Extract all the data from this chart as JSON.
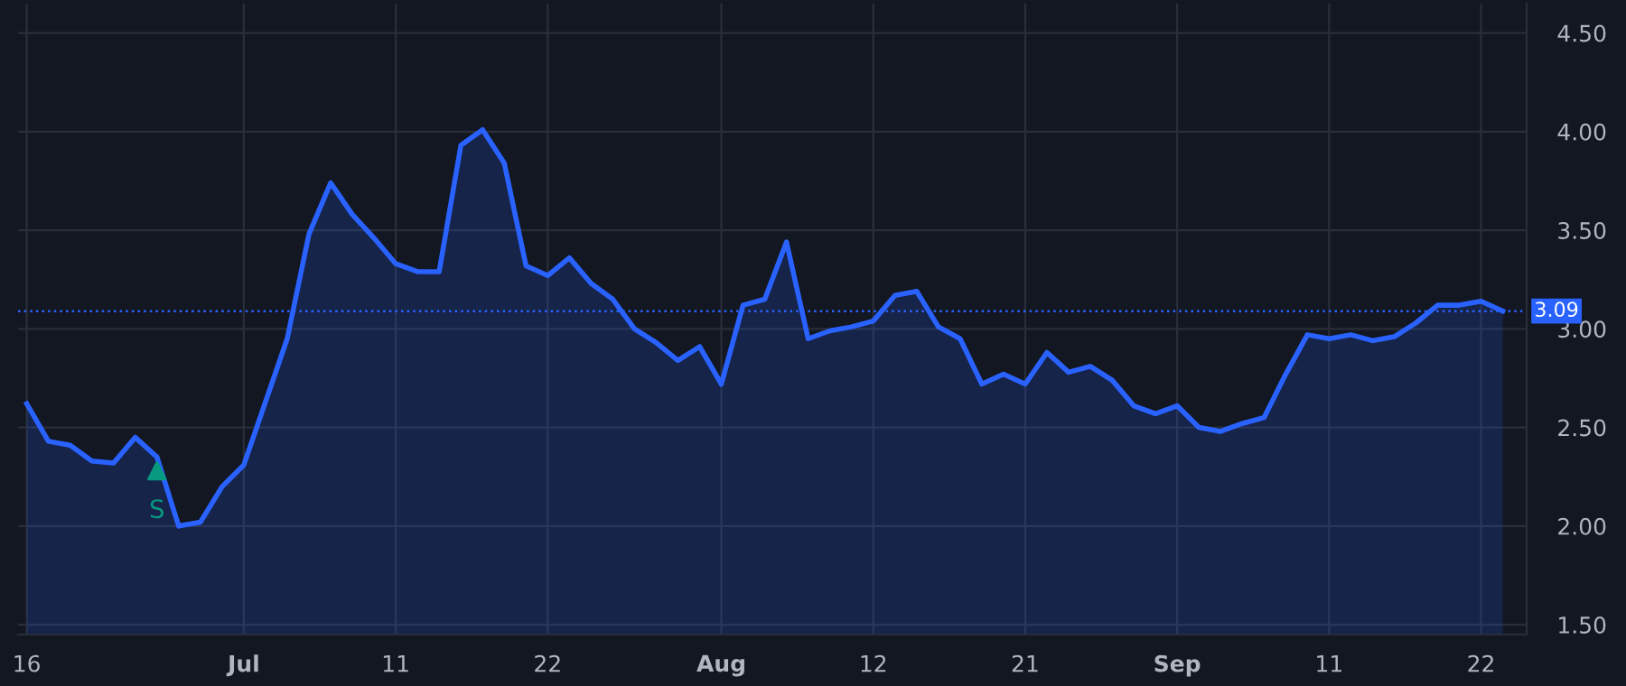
{
  "chart_data": {
    "type": "area",
    "categories": [
      "16",
      null,
      null,
      null,
      null,
      null,
      null,
      null,
      null,
      null,
      "Jul",
      null,
      null,
      null,
      null,
      null,
      null,
      "11",
      null,
      null,
      null,
      null,
      null,
      null,
      "22",
      null,
      null,
      null,
      null,
      null,
      null,
      null,
      "Aug",
      null,
      null,
      null,
      null,
      null,
      null,
      "12",
      null,
      null,
      null,
      null,
      null,
      null,
      "21",
      null,
      null,
      null,
      null,
      null,
      null,
      "Sep",
      null,
      null,
      null,
      null,
      null,
      null,
      "11",
      null,
      null,
      null,
      null,
      null,
      null,
      "22",
      null
    ],
    "series": [
      {
        "color": "#2962ff",
        "values": [
          2.62,
          2.43,
          2.41,
          2.33,
          2.32,
          2.45,
          2.35,
          2.0,
          2.02,
          2.2,
          2.31,
          2.63,
          2.95,
          3.48,
          3.74,
          3.58,
          3.46,
          3.33,
          3.29,
          3.29,
          3.93,
          4.01,
          3.84,
          3.32,
          3.27,
          3.36,
          3.23,
          3.15,
          3.0,
          2.93,
          2.84,
          2.91,
          2.72,
          3.12,
          3.15,
          3.44,
          2.95,
          2.99,
          3.01,
          3.04,
          3.17,
          3.19,
          3.01,
          2.95,
          2.72,
          2.77,
          2.72,
          2.88,
          2.78,
          2.81,
          2.74,
          2.61,
          2.57,
          2.61,
          2.5,
          2.48,
          2.52,
          2.55,
          2.77,
          2.97,
          2.95,
          2.97,
          2.94,
          2.96,
          3.03,
          3.12,
          3.12,
          3.14,
          3.09
        ]
      },
      {
        "type": "scatter",
        "color": "#089981",
        "marker": "triangle",
        "values": [
          null,
          null,
          null,
          null,
          null,
          null,
          2.28,
          null,
          null,
          null,
          null,
          null,
          null,
          null,
          null,
          null,
          null,
          null,
          null,
          null,
          null,
          null,
          null,
          null,
          null,
          null,
          null,
          null,
          null,
          null,
          null,
          null,
          null,
          null,
          null,
          null,
          null,
          null,
          null,
          null,
          null,
          null,
          null,
          null,
          null,
          null,
          null,
          null,
          null,
          null,
          null,
          null,
          null,
          null,
          null,
          null,
          null,
          null,
          null,
          null,
          null,
          null,
          null,
          null,
          null,
          null,
          null,
          null,
          null
        ]
      }
    ],
    "annotations": [
      "S"
    ],
    "ylim": [
      1.45,
      4.65
    ],
    "yticks": [
      {
        "value": 1.5,
        "label": "1.50"
      },
      {
        "value": 2.0,
        "label": "2.00"
      },
      {
        "value": 2.5,
        "label": "2.50"
      },
      {
        "value": 3.0,
        "label": "3.00"
      },
      {
        "value": 3.5,
        "label": "3.50"
      },
      {
        "value": 4.0,
        "label": "4.00"
      },
      {
        "value": 4.5,
        "label": "4.50"
      }
    ],
    "ref_lines": [
      {
        "axis": "y",
        "value": 3.09,
        "label": "3.09",
        "color": "#2962ff",
        "line_style": "dotted"
      }
    ],
    "grid": true,
    "legend": false
  }
}
